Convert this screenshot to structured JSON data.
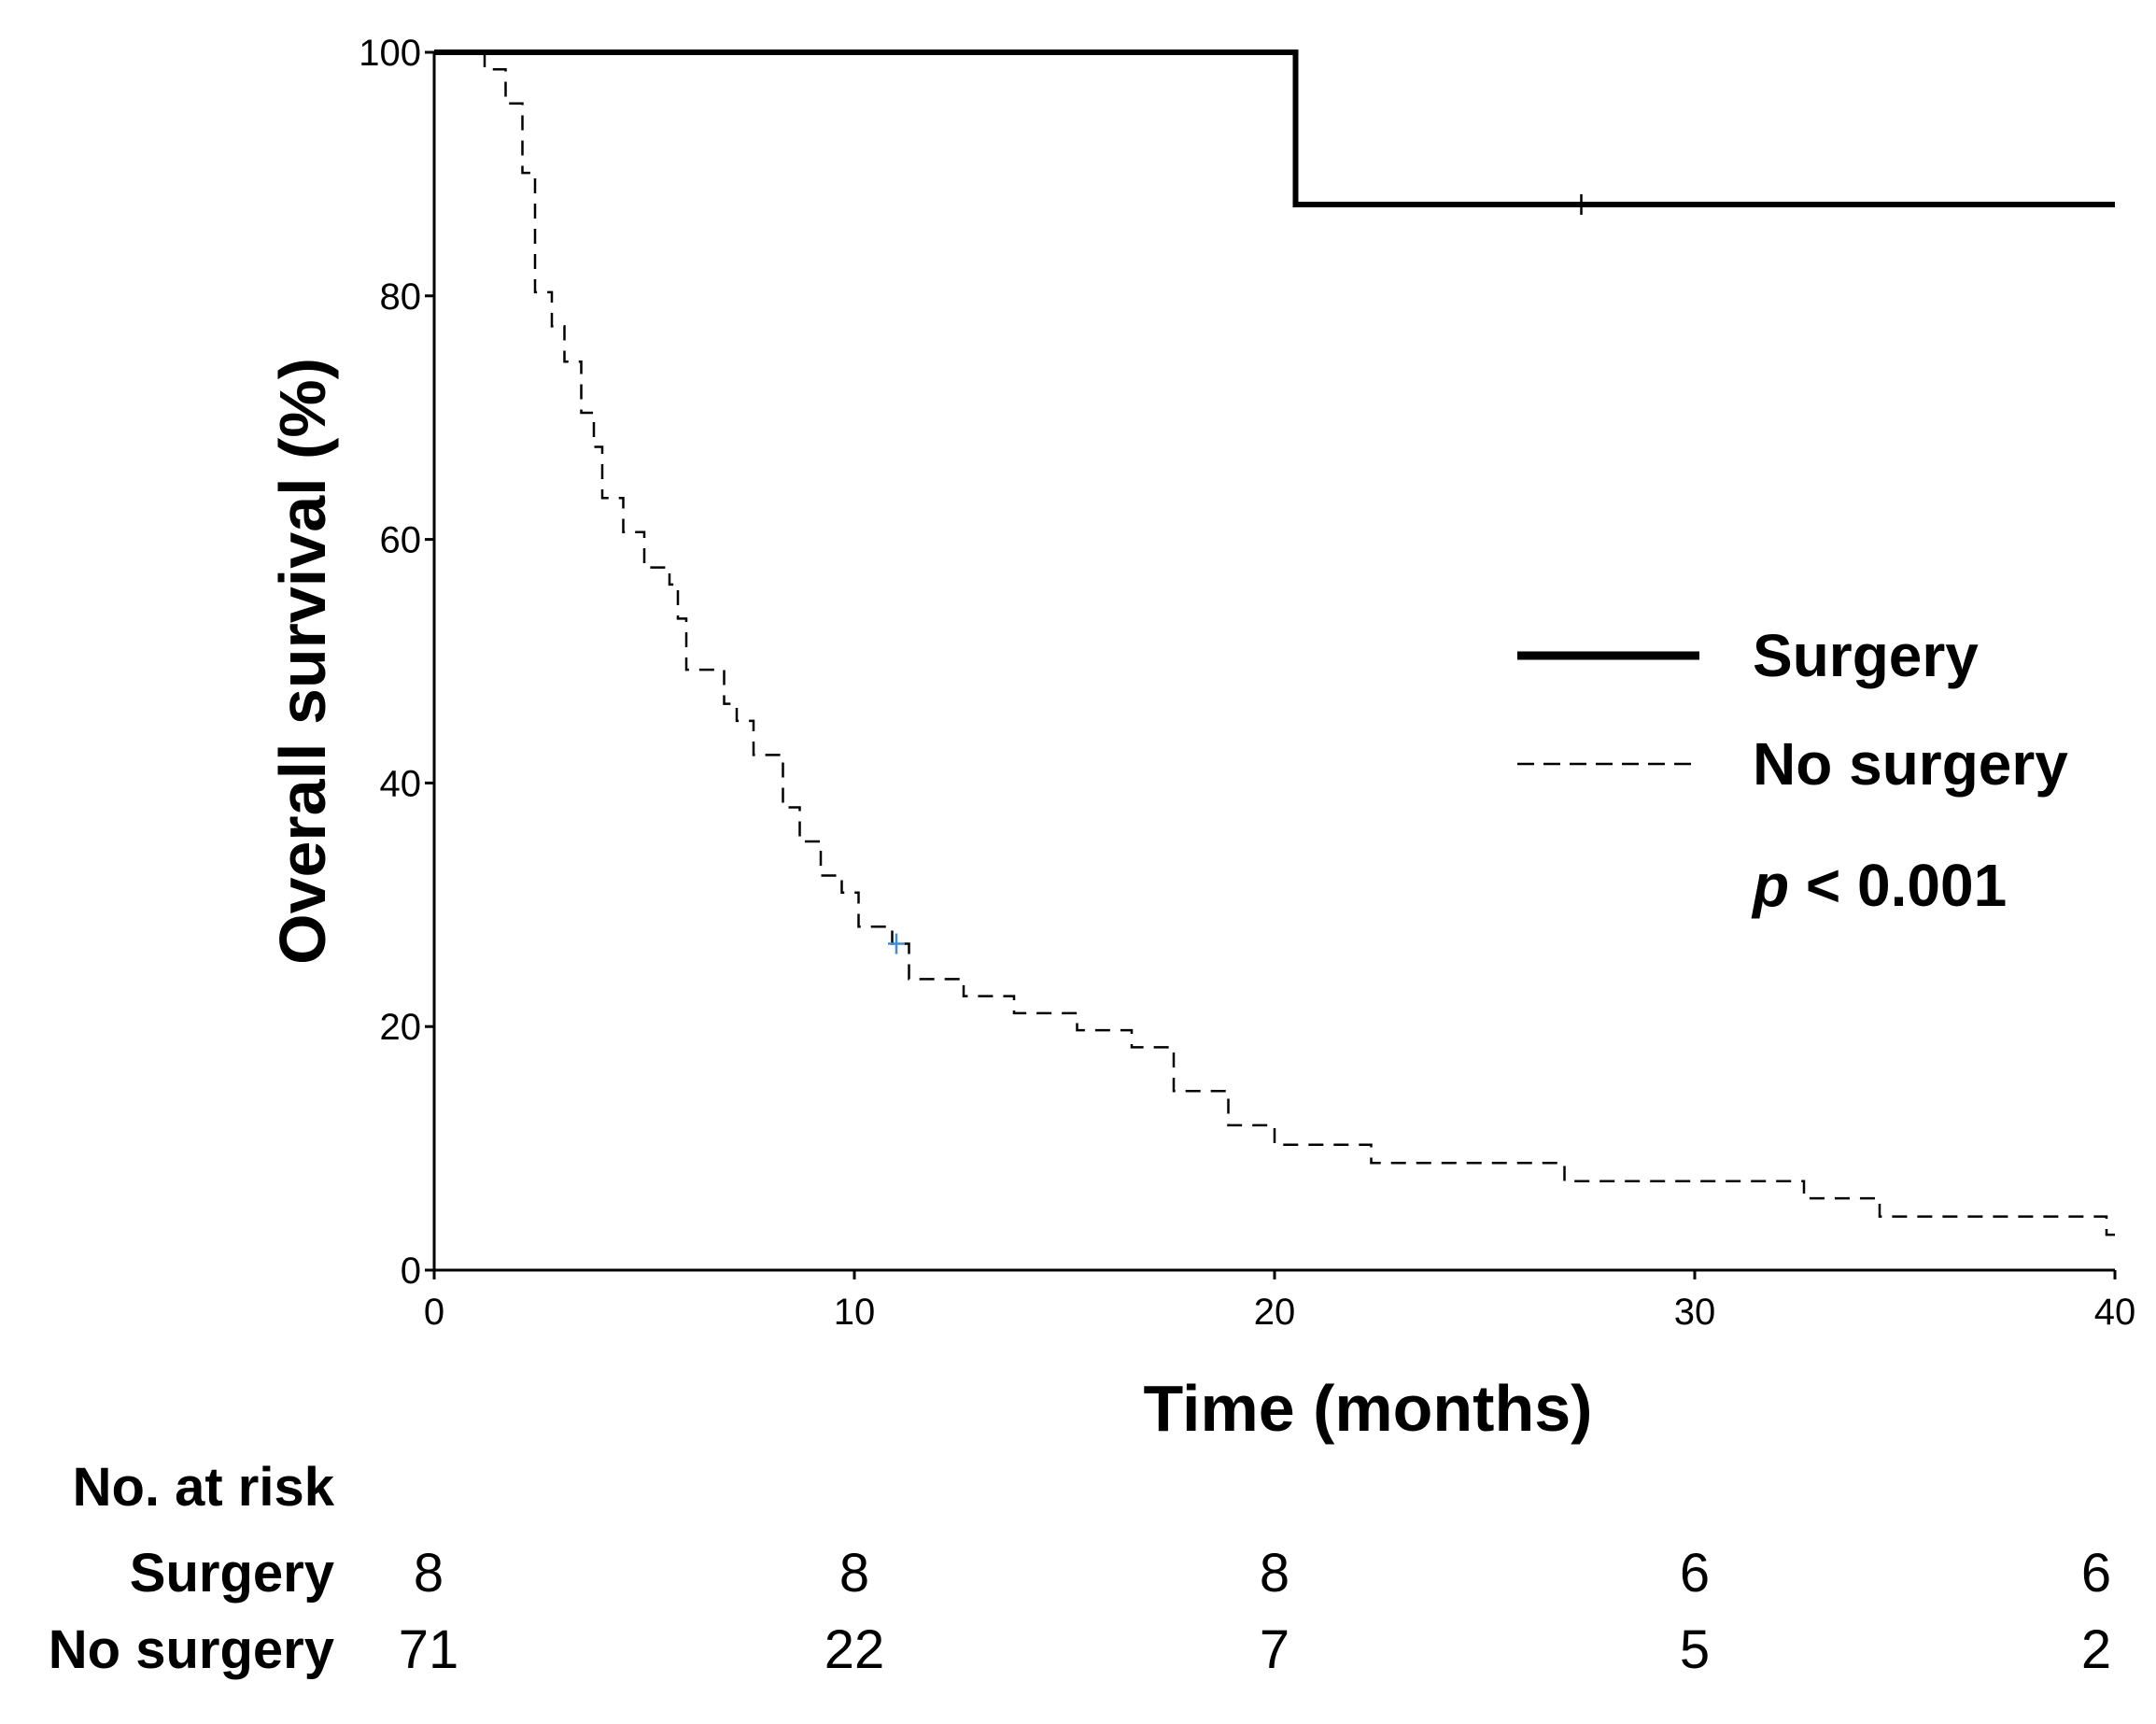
{
  "chart_data": {
    "type": "line",
    "subtype": "kaplan-meier",
    "title": "",
    "xlabel": "Time (months)",
    "ylabel": "Overall survival (%)",
    "xlim": [
      0,
      40
    ],
    "ylim": [
      0,
      100
    ],
    "x_ticks": [
      "0",
      "10",
      "20",
      "30",
      "40"
    ],
    "y_ticks": [
      "0",
      "20",
      "40",
      "60",
      "80",
      "100"
    ],
    "grid": false,
    "legend_position": "right",
    "p_value": {
      "italic": "p",
      "rest": " < 0.001"
    },
    "series": [
      {
        "name": "Surgery",
        "style": "solid",
        "color": "#000000",
        "steps": [
          [
            0,
            100
          ],
          [
            20.5,
            87.5
          ],
          [
            40,
            87.5
          ]
        ],
        "censor_marks": [
          [
            27.3,
            87.5
          ]
        ]
      },
      {
        "name": "No surgery",
        "style": "dashed",
        "color": "#000000",
        "steps": [
          [
            0,
            100
          ],
          [
            1.2,
            98.6
          ],
          [
            1.7,
            95.8
          ],
          [
            2.1,
            90.1
          ],
          [
            2.4,
            80.3
          ],
          [
            2.8,
            77.5
          ],
          [
            3.1,
            74.6
          ],
          [
            3.5,
            70.4
          ],
          [
            3.8,
            67.6
          ],
          [
            4.0,
            63.4
          ],
          [
            4.5,
            60.6
          ],
          [
            5.0,
            57.7
          ],
          [
            5.6,
            56.3
          ],
          [
            5.8,
            53.5
          ],
          [
            6.0,
            49.3
          ],
          [
            6.9,
            46.5
          ],
          [
            7.2,
            45.1
          ],
          [
            7.6,
            42.3
          ],
          [
            8.3,
            38.0
          ],
          [
            8.7,
            35.2
          ],
          [
            9.2,
            32.4
          ],
          [
            9.7,
            31.0
          ],
          [
            10.1,
            28.2
          ],
          [
            10.9,
            26.8
          ],
          [
            11.3,
            23.9
          ],
          [
            12.6,
            22.5
          ],
          [
            13.8,
            21.1
          ],
          [
            15.3,
            19.7
          ],
          [
            16.6,
            18.3
          ],
          [
            17.6,
            14.7
          ],
          [
            18.9,
            11.9
          ],
          [
            20.0,
            10.3
          ],
          [
            22.3,
            8.8
          ],
          [
            26.9,
            7.3
          ],
          [
            32.6,
            5.9
          ],
          [
            34.4,
            4.4
          ],
          [
            39.8,
            2.9
          ]
        ],
        "censor_marks": [
          [
            11.0,
            26.8
          ]
        ]
      }
    ],
    "risk_table": {
      "title": "No. at risk",
      "times": [
        0,
        10,
        20,
        30,
        40
      ],
      "rows": [
        {
          "label": "Surgery",
          "values": [
            "8",
            "8",
            "8",
            "6",
            "6"
          ]
        },
        {
          "label": "No surgery",
          "values": [
            "71",
            "22",
            "7",
            "5",
            "2"
          ]
        }
      ]
    },
    "censor_color": "#3a8fd8"
  }
}
